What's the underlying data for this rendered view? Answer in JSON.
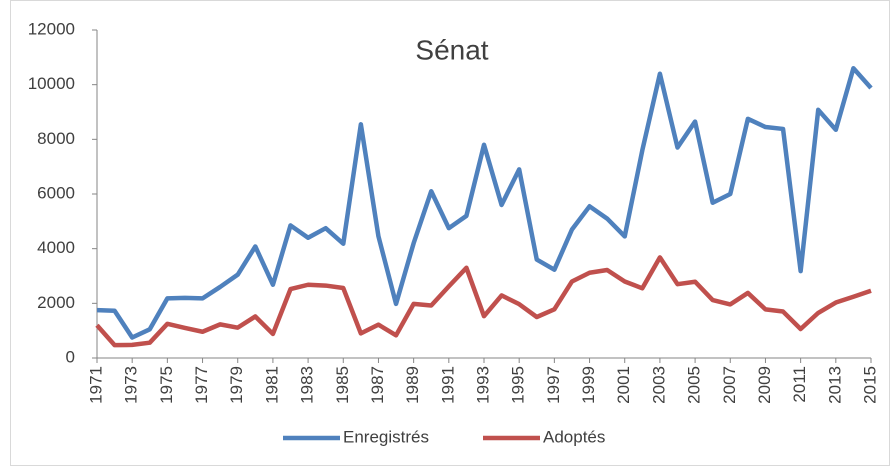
{
  "chart_data": {
    "type": "line",
    "title": "Sénat",
    "x": [
      1971,
      1972,
      1973,
      1974,
      1975,
      1976,
      1977,
      1978,
      1979,
      1980,
      1981,
      1982,
      1983,
      1984,
      1985,
      1986,
      1987,
      1988,
      1989,
      1990,
      1991,
      1992,
      1993,
      1994,
      1995,
      1996,
      1997,
      1998,
      1999,
      2000,
      2001,
      2002,
      2003,
      2004,
      2005,
      2006,
      2007,
      2008,
      2009,
      2010,
      2011,
      2012,
      2013,
      2014,
      2015
    ],
    "series": [
      {
        "name": "Enregistrés",
        "color": "#4f81bd",
        "values": [
          1750,
          1730,
          750,
          1050,
          2180,
          2200,
          2180,
          2600,
          3050,
          4080,
          2680,
          4850,
          4400,
          4750,
          4180,
          8550,
          4450,
          1980,
          4200,
          6100,
          4750,
          5200,
          7800,
          5600,
          6900,
          3600,
          3230,
          4700,
          5550,
          5100,
          4450,
          7600,
          10400,
          7700,
          8650,
          5680,
          6000,
          8750,
          8450,
          8380,
          3180,
          9080,
          8350,
          10600,
          9880
        ]
      },
      {
        "name": "Adoptés",
        "color": "#c0504d",
        "values": [
          1200,
          470,
          480,
          560,
          1250,
          1100,
          960,
          1230,
          1110,
          1520,
          880,
          2520,
          2680,
          2650,
          2560,
          900,
          1220,
          830,
          1980,
          1920,
          2620,
          3300,
          1530,
          2290,
          1970,
          1500,
          1780,
          2800,
          3120,
          3220,
          2800,
          2550,
          3680,
          2700,
          2790,
          2120,
          1960,
          2380,
          1780,
          1700,
          1060,
          1650,
          2030,
          2240,
          2460
        ]
      }
    ],
    "xlim": [
      1971,
      2015
    ],
    "xticks": [
      1971,
      1973,
      1975,
      1977,
      1979,
      1981,
      1983,
      1985,
      1987,
      1989,
      1991,
      1993,
      1995,
      1997,
      1999,
      2001,
      2003,
      2005,
      2007,
      2009,
      2011,
      2013,
      2015
    ],
    "ylim": [
      0,
      12000
    ],
    "yticks": [
      0,
      2000,
      4000,
      6000,
      8000,
      10000,
      12000
    ],
    "grid": false,
    "legend": "bottom"
  }
}
